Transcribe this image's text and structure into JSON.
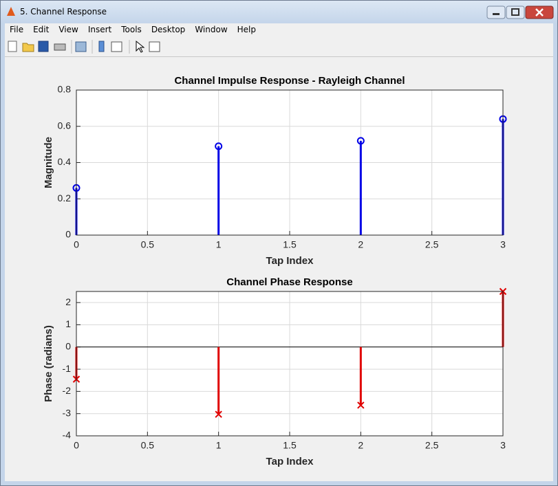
{
  "window": {
    "title": "5. Channel Response"
  },
  "menu": [
    "File",
    "Edit",
    "View",
    "Insert",
    "Tools",
    "Desktop",
    "Window",
    "Help"
  ],
  "chart_data": [
    {
      "type": "stem",
      "title": "Channel Impulse Response - Rayleigh Channel",
      "xlabel": "Tap Index",
      "ylabel": "Magnitude",
      "x": [
        0,
        1,
        2,
        3
      ],
      "values": [
        0.26,
        0.49,
        0.52,
        0.64
      ],
      "color": "#0000e6",
      "marker": "o",
      "xlim": [
        0,
        3
      ],
      "xticks": [
        0,
        0.5,
        1,
        1.5,
        2,
        2.5,
        3
      ],
      "ylim": [
        0,
        0.8
      ],
      "yticks": [
        0,
        0.2,
        0.4,
        0.6,
        0.8
      ],
      "grid": true
    },
    {
      "type": "stem",
      "title": "Channel Phase Response",
      "xlabel": "Tap Index",
      "ylabel": "Phase (radians)",
      "x": [
        0,
        1,
        2,
        3
      ],
      "values": [
        -1.45,
        -3.03,
        -2.62,
        2.5
      ],
      "color": "#e00000",
      "marker": "x",
      "xlim": [
        0,
        3
      ],
      "xticks": [
        0,
        0.5,
        1,
        1.5,
        2,
        2.5,
        3
      ],
      "ylim": [
        -4,
        2.5
      ],
      "yticks": [
        -4,
        -3,
        -2,
        -1,
        0,
        1,
        2
      ],
      "grid": true
    }
  ]
}
